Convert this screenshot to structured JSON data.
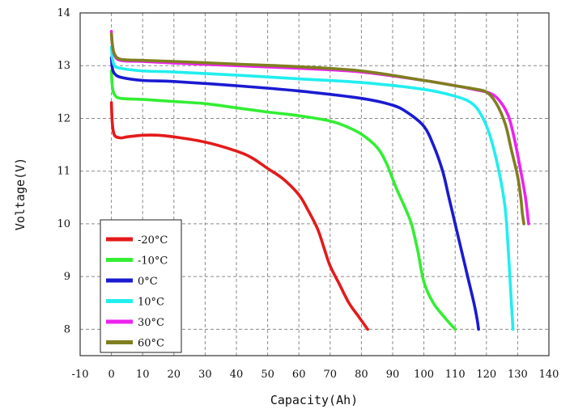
{
  "chart_data": {
    "type": "line",
    "xlabel": "Capacity(Ah)",
    "ylabel": "Voltage(V)",
    "xlim": [
      -10,
      140
    ],
    "ylim": [
      7.5,
      14
    ],
    "x_ticks": [
      "-10",
      "0",
      "10",
      "20",
      "30",
      "40",
      "50",
      "60",
      "70",
      "80",
      "90",
      "100",
      "110",
      "120",
      "130",
      "140"
    ],
    "y_ticks": [
      "8",
      "9",
      "10",
      "11",
      "12",
      "13",
      "14"
    ],
    "grid": true,
    "legend_position": "bottom-left",
    "series": [
      {
        "name": "-20°C",
        "color": "#e41a1a",
        "points": [
          [
            0,
            12.3
          ],
          [
            0.3,
            11.9
          ],
          [
            1,
            11.68
          ],
          [
            3,
            11.63
          ],
          [
            5,
            11.65
          ],
          [
            10,
            11.68
          ],
          [
            15,
            11.68
          ],
          [
            20,
            11.65
          ],
          [
            30,
            11.55
          ],
          [
            40,
            11.38
          ],
          [
            45,
            11.25
          ],
          [
            50,
            11.05
          ],
          [
            55,
            10.85
          ],
          [
            60,
            10.55
          ],
          [
            63,
            10.25
          ],
          [
            66,
            9.9
          ],
          [
            68,
            9.55
          ],
          [
            70,
            9.2
          ],
          [
            73,
            8.85
          ],
          [
            76,
            8.5
          ],
          [
            79,
            8.25
          ],
          [
            82,
            8.0
          ]
        ]
      },
      {
        "name": "-10°C",
        "color": "#33ee33",
        "points": [
          [
            0,
            12.9
          ],
          [
            0.3,
            12.6
          ],
          [
            1,
            12.45
          ],
          [
            3,
            12.38
          ],
          [
            10,
            12.36
          ],
          [
            20,
            12.32
          ],
          [
            30,
            12.28
          ],
          [
            40,
            12.2
          ],
          [
            50,
            12.12
          ],
          [
            60,
            12.05
          ],
          [
            70,
            11.95
          ],
          [
            75,
            11.85
          ],
          [
            80,
            11.7
          ],
          [
            85,
            11.45
          ],
          [
            88,
            11.15
          ],
          [
            91,
            10.7
          ],
          [
            94,
            10.3
          ],
          [
            96,
            10.0
          ],
          [
            98,
            9.5
          ],
          [
            100,
            8.9
          ],
          [
            103,
            8.5
          ],
          [
            107,
            8.2
          ],
          [
            110,
            8.0
          ]
        ]
      },
      {
        "name": "0°C",
        "color": "#1a1ad2",
        "points": [
          [
            0,
            13.15
          ],
          [
            0.3,
            12.95
          ],
          [
            1,
            12.85
          ],
          [
            3,
            12.78
          ],
          [
            10,
            12.72
          ],
          [
            20,
            12.7
          ],
          [
            40,
            12.62
          ],
          [
            60,
            12.52
          ],
          [
            80,
            12.38
          ],
          [
            90,
            12.25
          ],
          [
            95,
            12.1
          ],
          [
            100,
            11.85
          ],
          [
            103,
            11.5
          ],
          [
            106,
            11.0
          ],
          [
            108,
            10.5
          ],
          [
            110,
            10.0
          ],
          [
            112,
            9.5
          ],
          [
            114,
            9.0
          ],
          [
            116,
            8.5
          ],
          [
            117,
            8.2
          ],
          [
            117.5,
            8.0
          ]
        ]
      },
      {
        "name": "10°C",
        "color": "#22eeee",
        "points": [
          [
            0,
            13.35
          ],
          [
            0.3,
            13.15
          ],
          [
            1,
            13.0
          ],
          [
            3,
            12.95
          ],
          [
            10,
            12.9
          ],
          [
            20,
            12.88
          ],
          [
            40,
            12.82
          ],
          [
            60,
            12.75
          ],
          [
            80,
            12.68
          ],
          [
            100,
            12.55
          ],
          [
            110,
            12.42
          ],
          [
            115,
            12.3
          ],
          [
            118,
            12.1
          ],
          [
            121,
            11.7
          ],
          [
            124,
            11.0
          ],
          [
            126,
            10.3
          ],
          [
            127,
            9.5
          ],
          [
            127.5,
            9.0
          ],
          [
            128,
            8.5
          ],
          [
            128.5,
            8.0
          ]
        ]
      },
      {
        "name": "30°C",
        "color": "#ee22ee",
        "points": [
          [
            0,
            13.65
          ],
          [
            0.3,
            13.4
          ],
          [
            1,
            13.2
          ],
          [
            3,
            13.1
          ],
          [
            10,
            13.08
          ],
          [
            20,
            13.05
          ],
          [
            40,
            13.0
          ],
          [
            60,
            12.95
          ],
          [
            80,
            12.88
          ],
          [
            100,
            12.72
          ],
          [
            110,
            12.62
          ],
          [
            116,
            12.55
          ],
          [
            121,
            12.48
          ],
          [
            124,
            12.35
          ],
          [
            127,
            12.05
          ],
          [
            129,
            11.6
          ],
          [
            131,
            11.0
          ],
          [
            132.5,
            10.5
          ],
          [
            133.5,
            10.0
          ]
        ]
      },
      {
        "name": "60°C",
        "color": "#7f7f1f",
        "points": [
          [
            0,
            13.6
          ],
          [
            0.3,
            13.4
          ],
          [
            1,
            13.22
          ],
          [
            3,
            13.12
          ],
          [
            10,
            13.1
          ],
          [
            20,
            13.08
          ],
          [
            40,
            13.03
          ],
          [
            60,
            12.98
          ],
          [
            80,
            12.9
          ],
          [
            100,
            12.72
          ],
          [
            110,
            12.62
          ],
          [
            116,
            12.56
          ],
          [
            120,
            12.5
          ],
          [
            123,
            12.3
          ],
          [
            126,
            11.9
          ],
          [
            128,
            11.4
          ],
          [
            130,
            10.9
          ],
          [
            131,
            10.5
          ],
          [
            131.5,
            10.2
          ],
          [
            132,
            10.0
          ]
        ]
      }
    ]
  }
}
